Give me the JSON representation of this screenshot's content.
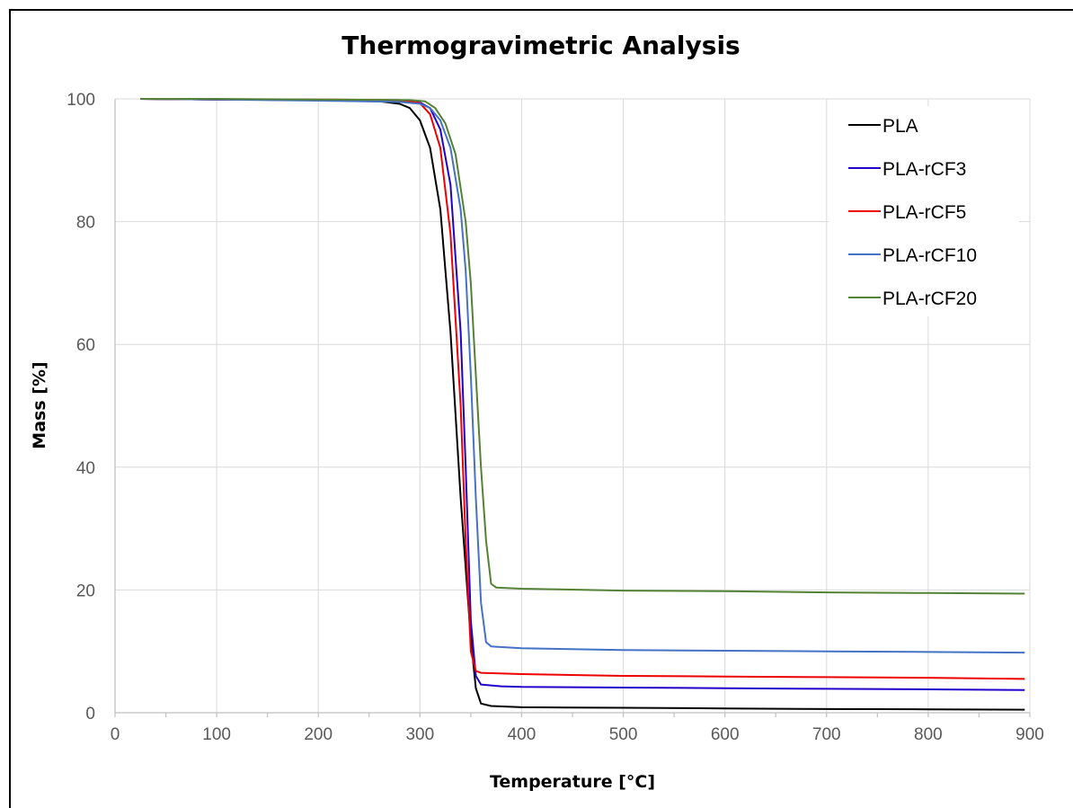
{
  "chart_data": {
    "type": "line",
    "title": "Thermogravimetric Analysis",
    "xlabel": "Temperature  [°C]",
    "ylabel": "Mass [%]",
    "xlim": [
      0,
      900
    ],
    "ylim": [
      0,
      100
    ],
    "x_ticks": [
      0,
      100,
      200,
      300,
      400,
      500,
      600,
      700,
      800,
      900
    ],
    "y_ticks": [
      0,
      20,
      40,
      60,
      80,
      100
    ],
    "grid": true,
    "legend_position": "top-right",
    "series": [
      {
        "name": "PLA",
        "color": "#000000",
        "points": [
          [
            25,
            100
          ],
          [
            100,
            99.9
          ],
          [
            200,
            99.8
          ],
          [
            260,
            99.6
          ],
          [
            280,
            99.2
          ],
          [
            290,
            98.5
          ],
          [
            300,
            96.5
          ],
          [
            310,
            92
          ],
          [
            320,
            82
          ],
          [
            330,
            62
          ],
          [
            340,
            35
          ],
          [
            350,
            12
          ],
          [
            355,
            4
          ],
          [
            360,
            1.5
          ],
          [
            370,
            1.1
          ],
          [
            400,
            0.9
          ],
          [
            500,
            0.8
          ],
          [
            600,
            0.7
          ],
          [
            700,
            0.6
          ],
          [
            800,
            0.55
          ],
          [
            895,
            0.5
          ]
        ]
      },
      {
        "name": "PLA-rCF3",
        "color": "#2200cc",
        "points": [
          [
            25,
            100
          ],
          [
            100,
            99.9
          ],
          [
            200,
            99.8
          ],
          [
            270,
            99.7
          ],
          [
            300,
            99.4
          ],
          [
            310,
            98.5
          ],
          [
            320,
            95
          ],
          [
            330,
            86
          ],
          [
            340,
            62
          ],
          [
            345,
            40
          ],
          [
            350,
            15
          ],
          [
            355,
            6
          ],
          [
            360,
            4.6
          ],
          [
            380,
            4.3
          ],
          [
            400,
            4.2
          ],
          [
            500,
            4.1
          ],
          [
            600,
            4.0
          ],
          [
            700,
            3.9
          ],
          [
            800,
            3.8
          ],
          [
            895,
            3.7
          ]
        ]
      },
      {
        "name": "PLA-rCF5",
        "color": "#ee0000",
        "points": [
          [
            25,
            100
          ],
          [
            100,
            99.9
          ],
          [
            200,
            99.9
          ],
          [
            280,
            99.8
          ],
          [
            300,
            99.3
          ],
          [
            310,
            97.5
          ],
          [
            320,
            92
          ],
          [
            330,
            78
          ],
          [
            340,
            50
          ],
          [
            345,
            28
          ],
          [
            350,
            10
          ],
          [
            355,
            6.8
          ],
          [
            360,
            6.5
          ],
          [
            400,
            6.3
          ],
          [
            500,
            6.0
          ],
          [
            600,
            5.9
          ],
          [
            700,
            5.8
          ],
          [
            800,
            5.7
          ],
          [
            895,
            5.5
          ]
        ]
      },
      {
        "name": "PLA-rCF10",
        "color": "#4472c4",
        "points": [
          [
            25,
            100
          ],
          [
            100,
            99.9
          ],
          [
            200,
            99.7
          ],
          [
            280,
            99.5
          ],
          [
            300,
            99.2
          ],
          [
            310,
            98.5
          ],
          [
            320,
            96.5
          ],
          [
            330,
            92
          ],
          [
            340,
            82
          ],
          [
            345,
            72
          ],
          [
            350,
            55
          ],
          [
            355,
            35
          ],
          [
            360,
            18
          ],
          [
            365,
            11.5
          ],
          [
            370,
            10.8
          ],
          [
            400,
            10.5
          ],
          [
            500,
            10.2
          ],
          [
            600,
            10.1
          ],
          [
            700,
            10.0
          ],
          [
            800,
            9.9
          ],
          [
            895,
            9.8
          ]
        ]
      },
      {
        "name": "PLA-rCF20",
        "color": "#548235",
        "points": [
          [
            25,
            100
          ],
          [
            100,
            100
          ],
          [
            200,
            99.9
          ],
          [
            290,
            99.8
          ],
          [
            305,
            99.6
          ],
          [
            315,
            98.5
          ],
          [
            325,
            96
          ],
          [
            335,
            91
          ],
          [
            345,
            80
          ],
          [
            350,
            70
          ],
          [
            355,
            55
          ],
          [
            360,
            40
          ],
          [
            365,
            28
          ],
          [
            370,
            21
          ],
          [
            375,
            20.4
          ],
          [
            400,
            20.2
          ],
          [
            500,
            19.9
          ],
          [
            600,
            19.8
          ],
          [
            700,
            19.6
          ],
          [
            800,
            19.5
          ],
          [
            895,
            19.4
          ]
        ]
      }
    ]
  }
}
